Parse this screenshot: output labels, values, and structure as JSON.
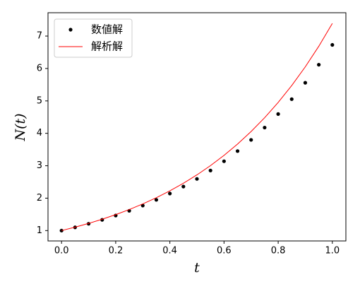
{
  "chart_data": {
    "type": "line",
    "x": [
      0,
      0.05,
      0.1,
      0.15,
      0.2,
      0.25,
      0.3,
      0.35,
      0.4,
      0.45,
      0.5,
      0.55,
      0.6,
      0.65,
      0.7,
      0.75,
      0.8,
      0.85,
      0.9,
      0.95,
      1.0
    ],
    "series": [
      {
        "name": "数値解",
        "color": "#000000",
        "mode": "markers",
        "values": [
          1,
          1.1,
          1.21,
          1.331,
          1.4641,
          1.6105,
          1.7716,
          1.9487,
          2.1436,
          2.3579,
          2.5937,
          2.8531,
          3.1384,
          3.4523,
          3.7975,
          4.1772,
          4.595,
          5.0545,
          5.5599,
          6.1159,
          6.7275
        ]
      },
      {
        "name": "解析解",
        "color": "#ff0000",
        "mode": "line",
        "values": [
          1,
          1.1052,
          1.2214,
          1.3499,
          1.4918,
          1.6487,
          1.8221,
          2.0138,
          2.2255,
          2.4596,
          2.7183,
          3.0042,
          3.3201,
          3.6693,
          4.0552,
          4.4817,
          4.953,
          5.4739,
          6.0496,
          6.6859,
          7.3891
        ]
      }
    ],
    "x_label": "t",
    "y_label": "N(t)",
    "xlim": [
      -0.05,
      1.05
    ],
    "ylim": [
      0.68,
      7.72
    ],
    "xticks": [
      {
        "value": 0,
        "label": "0.0"
      },
      0.2,
      0.4,
      0.6,
      0.8,
      {
        "value": 1,
        "label": "1.0"
      }
    ],
    "yticks": [
      1,
      2,
      3,
      4,
      5,
      6,
      7
    ],
    "legend": "upper left",
    "grid": false
  }
}
